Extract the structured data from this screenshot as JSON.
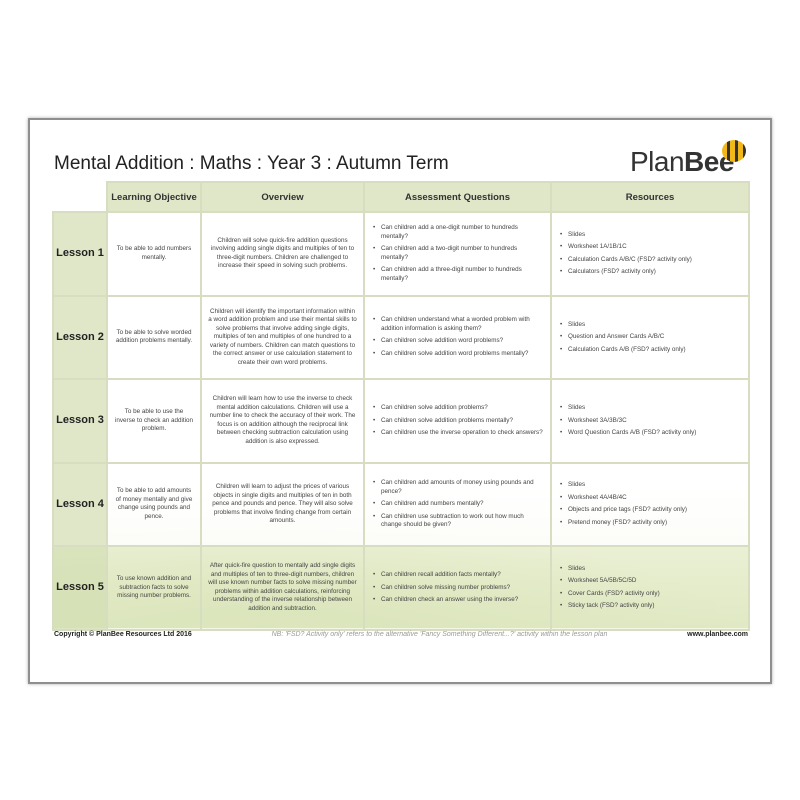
{
  "title": "Mental Addition : Maths : Year 3 : Autumn Term",
  "logo": {
    "plan": "Plan",
    "bee": "Bee",
    "icon": "bee-icon"
  },
  "headers": [
    "Learning Objective",
    "Overview",
    "Assessment Questions",
    "Resources"
  ],
  "lessons": [
    {
      "name": "Lesson 1",
      "objective": "To be able to add numbers mentally.",
      "overview": "Children will solve quick-fire addition questions involving adding single digits and multiples of ten to three-digit numbers. Children are challenged to increase their speed in solving such problems.",
      "questions": [
        "Can children add a one-digit number to hundreds mentally?",
        "Can children add a two-digit number to hundreds mentally?",
        "Can children add a three-digit number to hundreds mentally?"
      ],
      "resources": [
        "Slides",
        "Worksheet 1A/1B/1C",
        "Calculation Cards A/B/C (FSD? activity only)",
        "Calculators (FSD? activity only)"
      ]
    },
    {
      "name": "Lesson 2",
      "objective": "To be able to solve worded addition problems mentally.",
      "overview": "Children will identify the important information within a word addition problem and use their mental skills to solve problems that involve adding single digits, multiples of ten and multiples of one hundred to a variety of numbers. Children can match questions to the correct answer or use calculation statement to create their own word problems.",
      "questions": [
        "Can children understand what a worded problem with addition information is asking them?",
        "Can children solve addition word problems?",
        "Can children solve addition word problems mentally?"
      ],
      "resources": [
        "Slides",
        "Question and Answer Cards A/B/C",
        "Calculation Cards A/B (FSD? activity only)"
      ]
    },
    {
      "name": "Lesson 3",
      "objective": "To be able to use the inverse to check an addition problem.",
      "overview": "Children will learn how to use the inverse to check mental addition calculations. Children will use a number line to check the accuracy of their work. The focus is on addition although the reciprocal link between checking subtraction calculation using addition is also expressed.",
      "questions": [
        "Can children solve addition problems?",
        "Can children solve addition problems mentally?",
        "Can children use the inverse operation to check answers?"
      ],
      "resources": [
        "Slides",
        "Worksheet 3A/3B/3C",
        "Word Question Cards A/B (FSD? activity only)"
      ]
    },
    {
      "name": "Lesson 4",
      "objective": "To be able to add amounts of money mentally and give change using pounds and pence.",
      "overview": "Children will learn to adjust the prices of various objects in single digits and multiples of ten in both pence and pounds and pence. They will also solve problems that involve finding change from certain amounts.",
      "questions": [
        "Can children add amounts of money using pounds and pence?",
        "Can children add numbers mentally?",
        "Can children use subtraction to work out how much change should be given?"
      ],
      "resources": [
        "Slides",
        "Worksheet 4A/4B/4C",
        "Objects and price tags (FSD? activity only)",
        "Pretend money (FSD? activity only)"
      ]
    },
    {
      "name": "Lesson 5",
      "objective": "To use known addition and subtraction facts to solve missing number problems.",
      "overview": "After quick-fire question to mentally add single digits and multiples of ten to three-digit numbers, children will use known number facts to solve missing number problems within addition calculations, reinforcing understanding of the inverse relationship between addition and subtraction.",
      "questions": [
        "Can children recall addition facts mentally?",
        "Can children solve missing number problems?",
        "Can children check an answer using the inverse?"
      ],
      "resources": [
        "Slides",
        "Worksheet 5A/5B/5C/5D",
        "Cover Cards (FSD? activity only)",
        "Sticky tack (FSD? activity only)"
      ]
    }
  ],
  "footer": {
    "copyright": "Copyright © PlanBee Resources Ltd 2016",
    "note": "NB: 'FSD? Activity only' refers to the alternative 'Fancy Something Different...?' activity within the lesson plan",
    "website": "www.planbee.com"
  },
  "colors": {
    "header_fill": "#dfe7c8",
    "border": "#d6ddc0",
    "frame": "#8f8f8f"
  }
}
